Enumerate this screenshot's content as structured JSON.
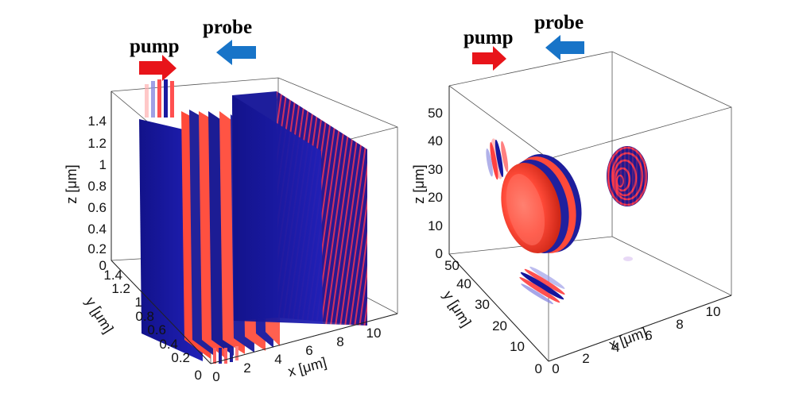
{
  "panels": [
    {
      "id": "left",
      "labels": {
        "pump": "pump",
        "probe": "probe",
        "z": "z [μm]",
        "y": "y [μm]",
        "x": "x [μm]"
      },
      "z_ticks": [
        "0",
        "0.2",
        "0.4",
        "0.6",
        "0.8",
        "1",
        "1.2",
        "1.4"
      ],
      "y_ticks": [
        "0",
        "0.2",
        "0.4",
        "0.6",
        "0.8",
        "1",
        "1.2",
        "1.4"
      ],
      "x_ticks": [
        "0",
        "2",
        "4",
        "6",
        "8",
        "10"
      ]
    },
    {
      "id": "right",
      "labels": {
        "pump": "pump",
        "probe": "probe",
        "z": "z [μm]",
        "y": "y [μm]",
        "x": "x [μm]"
      },
      "z_ticks": [
        "0",
        "10",
        "20",
        "30",
        "40",
        "50"
      ],
      "y_ticks": [
        "0",
        "10",
        "20",
        "30",
        "40",
        "50"
      ],
      "x_ticks": [
        "0",
        "2",
        "4",
        "6",
        "8",
        "10"
      ]
    }
  ],
  "colors": {
    "pump_arrow": "#e8141a",
    "probe_arrow": "#1874c8",
    "field_positive": "#ff4030",
    "field_negative": "#1a1aa8"
  }
}
